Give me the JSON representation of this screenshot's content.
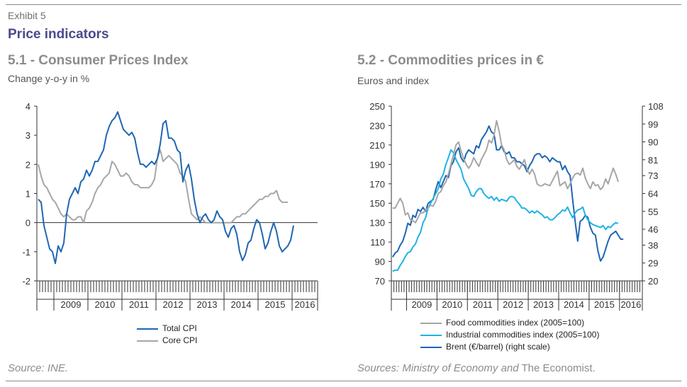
{
  "header": {
    "exhibit": "Exhibit 5",
    "title": "Price indicators"
  },
  "left": {
    "title": "5.1 - Consumer Prices Index",
    "subtitle": "Change y-o-y in %",
    "source": "Source: INE."
  },
  "right": {
    "title": "5.2 - Commodities prices in €",
    "subtitle": "Euros and index",
    "source_italic": "Sources: Ministry of Economy and",
    "source_plain": " The Economist."
  },
  "colors": {
    "dark_blue": "#1f66b4",
    "light_blue": "#1fb2e6",
    "grey": "#a6a6a6"
  },
  "chart_data": [
    {
      "type": "line",
      "title": "5.1 - Consumer Prices Index",
      "ylabel": "Change y-o-y in %",
      "ylim": [
        -2,
        4
      ],
      "yticks": [
        -2,
        -1,
        0,
        1,
        2,
        3,
        4
      ],
      "x_start": 2008.5,
      "x_end": 2016.75,
      "x_step_months": 1,
      "year_labels": [
        "2009",
        "2010",
        "2011",
        "2012",
        "2013",
        "2014",
        "2015",
        "2016"
      ],
      "legend_position": "bottom",
      "series": [
        {
          "name": "Total CPI",
          "color": "#1f66b4",
          "values": [
            0.8,
            0.7,
            -0.1,
            -0.5,
            -0.9,
            -1.0,
            -1.4,
            -0.8,
            -1.0,
            -0.7,
            0.3,
            0.8,
            1.0,
            1.2,
            1.0,
            1.4,
            1.5,
            1.8,
            1.6,
            1.8,
            2.1,
            2.1,
            2.3,
            2.5,
            3.0,
            3.3,
            3.5,
            3.6,
            3.8,
            3.5,
            3.2,
            3.1,
            3.0,
            3.1,
            2.9,
            2.4,
            2.0,
            2.0,
            1.9,
            2.0,
            2.1,
            2.0,
            2.2,
            2.7,
            3.4,
            3.5,
            2.9,
            2.9,
            2.8,
            2.5,
            2.4,
            1.4,
            1.8,
            2.0,
            1.5,
            0.8,
            0.3,
            0.0,
            0.2,
            0.3,
            0.1,
            0.0,
            0.1,
            0.4,
            0.2,
            0.1,
            -0.3,
            -0.5,
            -0.2,
            -0.1,
            -0.4,
            -1.0,
            -1.3,
            -1.1,
            -0.7,
            -0.6,
            -0.2,
            0.1,
            0.0,
            -0.4,
            -0.9,
            -0.7,
            -0.3,
            0.0,
            -0.3,
            -0.8,
            -1.0,
            -0.9,
            -0.8,
            -0.6,
            -0.1
          ]
        },
        {
          "name": "Core CPI",
          "color": "#a6a6a6",
          "values": [
            2.0,
            1.6,
            1.3,
            1.2,
            1.0,
            0.8,
            0.7,
            0.5,
            0.3,
            0.2,
            0.3,
            0.2,
            0.1,
            0.1,
            0.2,
            0.2,
            0.0,
            0.4,
            0.5,
            0.7,
            1.0,
            1.2,
            1.3,
            1.5,
            1.6,
            1.7,
            2.1,
            2.0,
            1.8,
            1.6,
            1.6,
            1.7,
            1.6,
            1.4,
            1.3,
            1.3,
            1.2,
            1.2,
            1.2,
            1.2,
            1.3,
            1.5,
            2.2,
            2.5,
            2.1,
            2.2,
            2.3,
            2.2,
            2.1,
            2.0,
            1.7,
            1.6,
            1.4,
            0.8,
            0.3,
            0.2,
            0.1,
            0.2,
            0.1,
            0.0,
            0.0,
            0.0,
            0.0,
            0.0,
            0.0,
            0.0,
            0.0,
            0.0,
            0.0,
            0.1,
            0.2,
            0.2,
            0.3,
            0.3,
            0.4,
            0.5,
            0.6,
            0.7,
            0.8,
            0.8,
            0.9,
            0.9,
            1.0,
            1.0,
            1.1,
            0.8,
            0.7,
            0.7,
            0.7
          ]
        }
      ]
    },
    {
      "type": "line",
      "title": "5.2 - Commodities prices in €",
      "ylabel": "Euros and index",
      "ylim": [
        70,
        250
      ],
      "yticks": [
        70,
        90,
        110,
        130,
        150,
        170,
        190,
        210,
        230,
        250
      ],
      "ylim_right": [
        20,
        108
      ],
      "yticks_right": [
        20,
        29,
        38,
        46,
        55,
        64,
        73,
        81,
        90,
        99,
        108
      ],
      "x_start": 2008.5,
      "x_end": 2016.75,
      "x_step_months": 1,
      "year_labels": [
        "2009",
        "2010",
        "2011",
        "2012",
        "2013",
        "2014",
        "2015",
        "2016"
      ],
      "legend_position": "bottom",
      "series": [
        {
          "name": "Food commodities index (2005=100)",
          "color": "#a6a6a6",
          "axis": "left",
          "values": [
            145,
            145,
            150,
            155,
            150,
            138,
            140,
            133,
            132,
            130,
            135,
            140,
            140,
            143,
            145,
            148,
            147,
            152,
            160,
            162,
            168,
            172,
            180,
            190,
            200,
            210,
            213,
            204,
            196,
            190,
            186,
            190,
            197,
            192,
            188,
            195,
            200,
            205,
            215,
            212,
            220,
            235,
            224,
            210,
            205,
            195,
            190,
            192,
            195,
            188,
            185,
            190,
            195,
            185,
            180,
            185,
            180,
            170,
            168,
            168,
            170,
            169,
            168,
            173,
            178,
            183,
            168,
            170,
            172,
            165,
            170,
            176,
            180,
            181,
            179,
            186,
            176,
            170,
            165,
            172,
            168,
            169,
            164,
            167,
            175,
            170,
            178,
            186,
            180,
            172
          ]
        },
        {
          "name": "Industrial commodities index (2005=100)",
          "color": "#1fb2e6",
          "axis": "left",
          "values": [
            80,
            81,
            81,
            86,
            90,
            95,
            99,
            100,
            105,
            108,
            115,
            120,
            130,
            135,
            145,
            150,
            155,
            160,
            165,
            175,
            180,
            190,
            197,
            205,
            202,
            195,
            190,
            185,
            175,
            170,
            165,
            158,
            157,
            162,
            165,
            165,
            160,
            157,
            155,
            157,
            153,
            156,
            152,
            154,
            153,
            152,
            156,
            157,
            156,
            152,
            149,
            145,
            145,
            143,
            140,
            142,
            140,
            142,
            140,
            138,
            135,
            136,
            133,
            133,
            135,
            138,
            140,
            143,
            142,
            146,
            140,
            135,
            140,
            143,
            144,
            146,
            138,
            133,
            130,
            128,
            127,
            126,
            125,
            127,
            123,
            126,
            125,
            128,
            130,
            129
          ]
        },
        {
          "name": "Brent (€/barrel) (right scale)",
          "color": "#1f66b4",
          "axis": "right",
          "values": [
            32,
            34,
            35,
            38,
            40,
            44,
            49,
            48,
            53,
            52,
            56,
            55,
            57,
            55,
            59,
            60,
            61,
            66,
            70,
            67,
            70,
            73,
            72,
            78,
            80,
            85,
            87,
            82,
            80,
            84,
            86,
            85,
            84,
            88,
            87,
            91,
            93,
            95,
            98,
            95,
            94,
            86,
            86,
            88,
            85,
            84,
            85,
            82,
            82,
            80,
            80,
            79,
            78,
            75,
            78,
            80,
            83,
            84,
            84,
            82,
            83,
            82,
            80,
            82,
            81,
            80,
            80,
            76,
            78,
            75,
            73,
            61,
            50,
            40,
            50,
            51,
            53,
            52,
            47,
            44,
            43,
            35,
            30,
            32,
            36,
            40,
            43,
            44,
            45,
            43,
            41,
            41
          ]
        }
      ]
    }
  ]
}
